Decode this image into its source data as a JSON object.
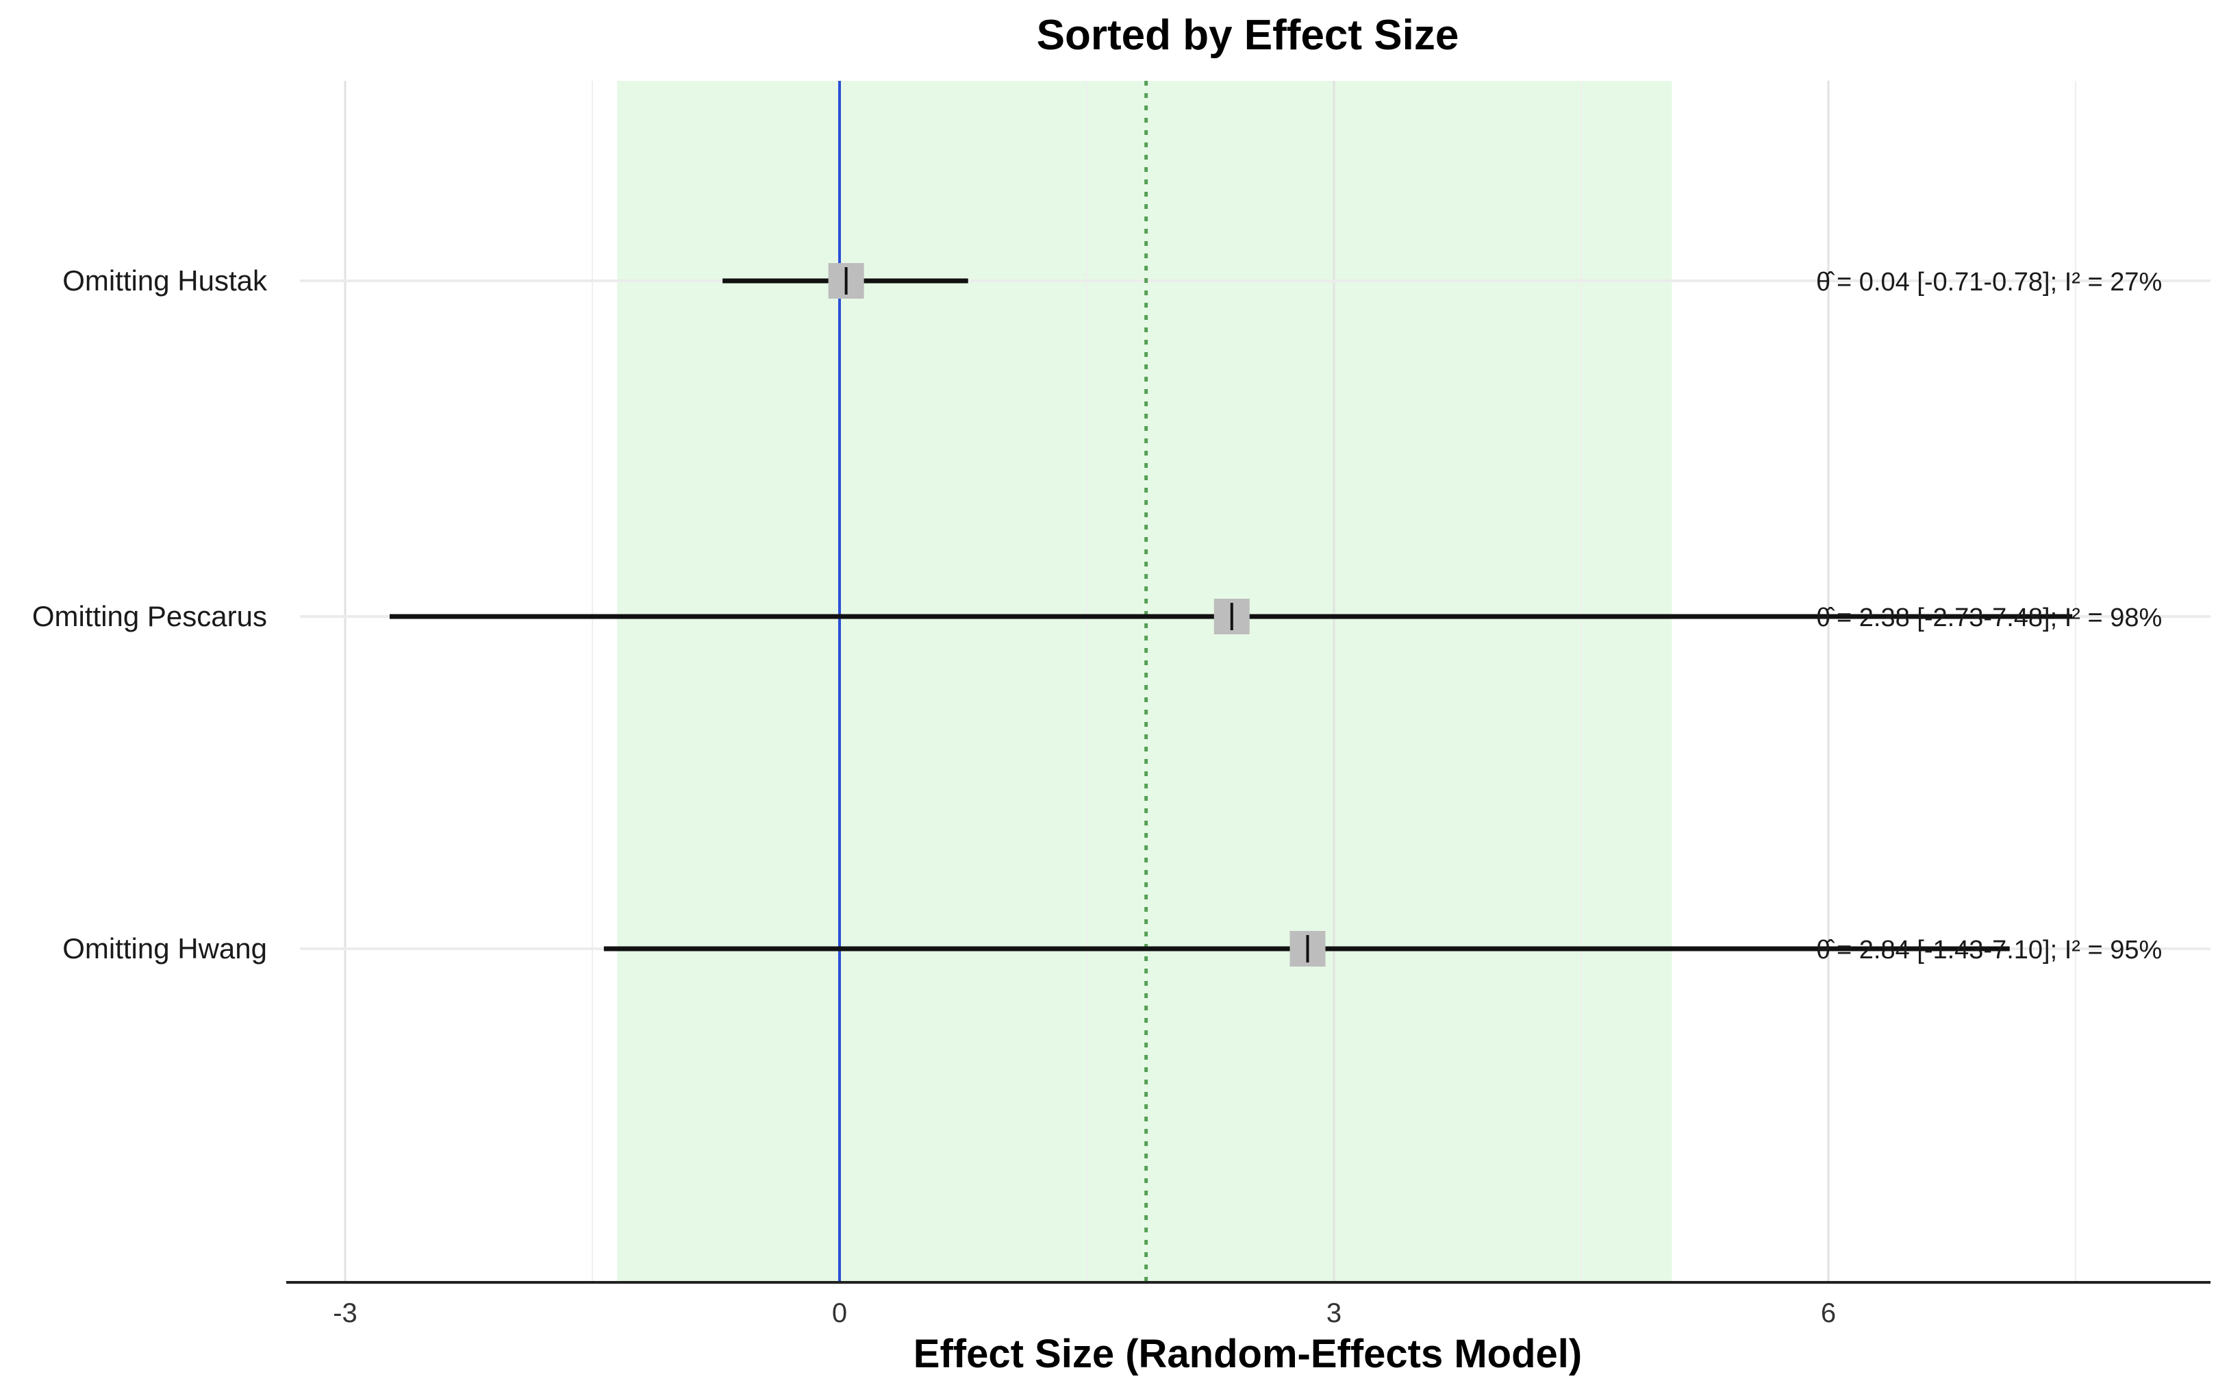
{
  "chart_data": {
    "type": "forest",
    "title": "Sorted by Effect Size",
    "xlabel": "Effect Size (Random-Effects Model)",
    "ylabel": "",
    "xlim": [
      -3.35,
      8.3
    ],
    "x_ticks": [
      -3,
      0,
      3,
      6
    ],
    "x_tick_labels": [
      "-3",
      "0",
      "3",
      "6"
    ],
    "minor_grid": [
      -1.5,
      1.5,
      4.5,
      7.5
    ],
    "grid": true,
    "reference_line": 0,
    "pooled_estimate": 1.86,
    "prediction_band": [
      -1.35,
      5.05
    ],
    "studies": [
      {
        "label": "Omitting Hustak",
        "estimate": 0.04,
        "lower": -0.71,
        "upper": 0.78,
        "annotation": "= 0.04 [-0.71-0.78]; I² = 27%"
      },
      {
        "label": "Omitting Pescarus",
        "estimate": 2.38,
        "lower": -2.73,
        "upper": 7.48,
        "annotation": "= 2.38 [-2.73-7.48]; I² = 98%"
      },
      {
        "label": "Omitting Hwang",
        "estimate": 2.84,
        "lower": -1.43,
        "upper": 7.1,
        "annotation": "= 2.84 [-1.43-7.10]; I² = 95%"
      }
    ],
    "colors": {
      "band": "#e6f9e6",
      "reference_line": "#2b4fd6",
      "pooled_line": "#55a055",
      "ci_line": "#111111",
      "point_box": "#bdbdbd",
      "grid": "#e8e8e8"
    }
  }
}
